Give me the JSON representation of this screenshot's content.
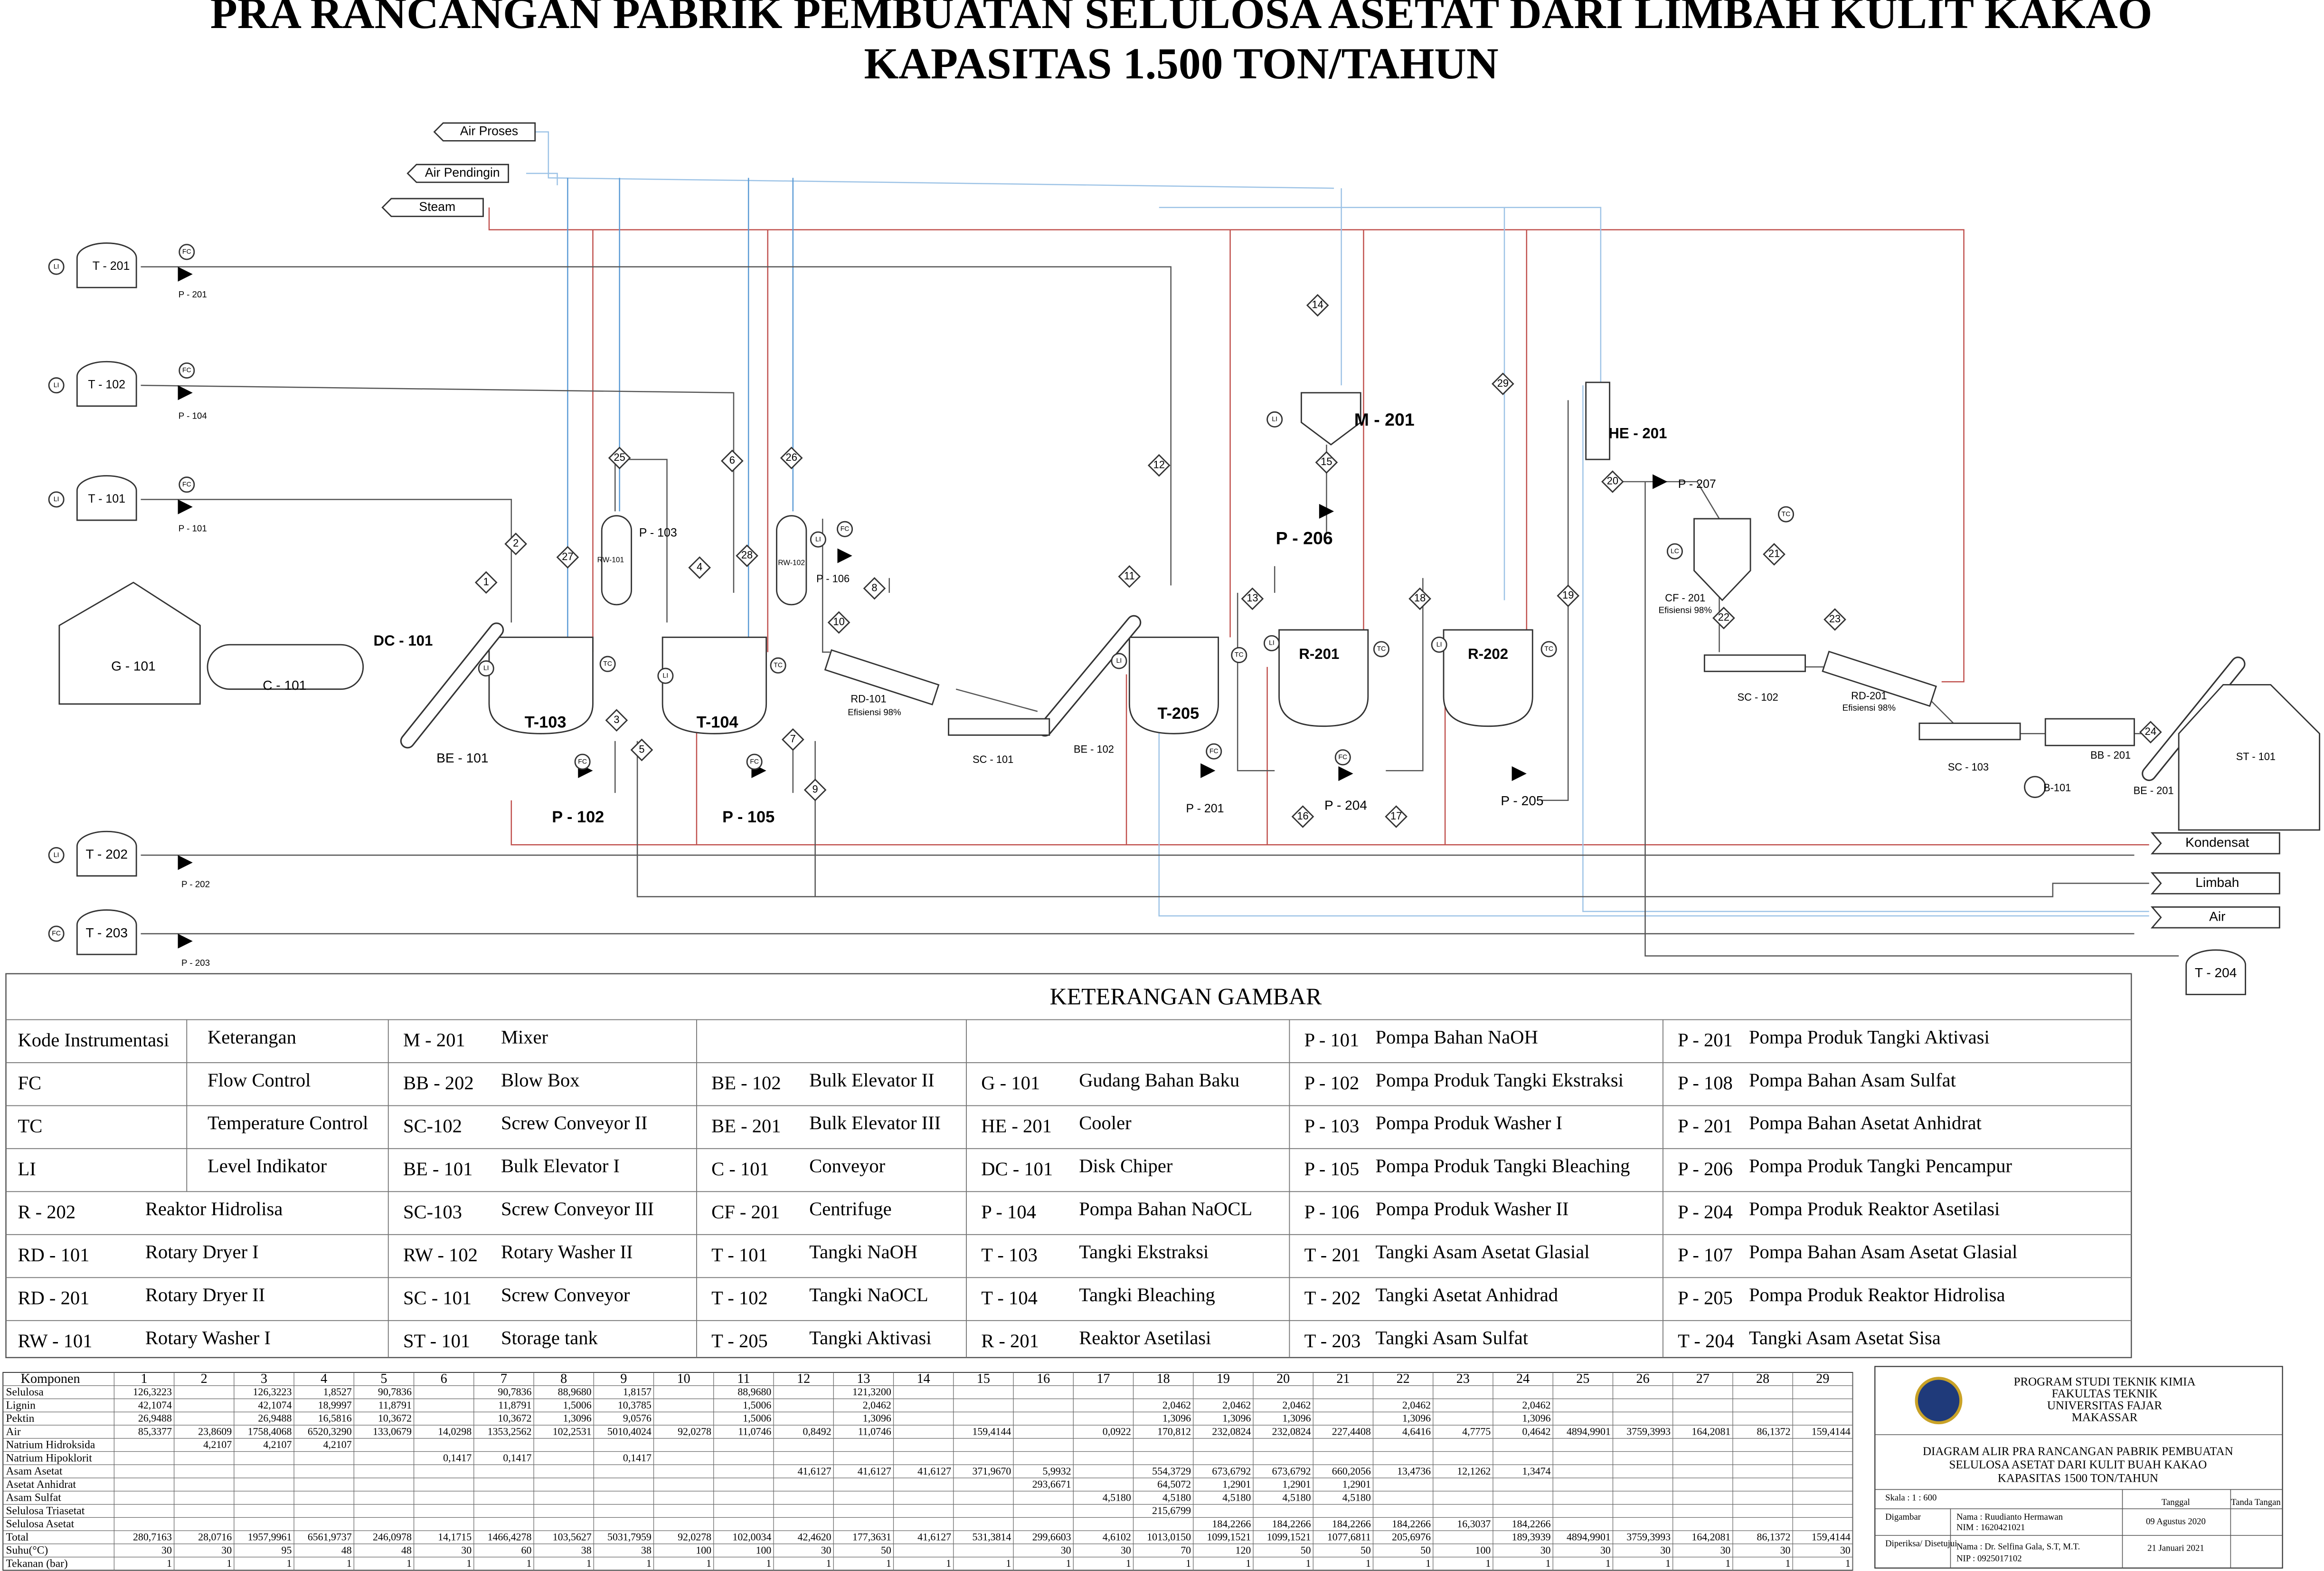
{
  "header": {
    "title_lines": [
      "PRA RANCANGAN PABRIK PEMBUATAN SELULOSA ASETAT  DARI LIMBAH KULIT KAKAO",
      "KAPASITAS 1.500 TON/TAHUN"
    ]
  },
  "diagram": {
    "utilities_in": [
      "Air Proses",
      "Air Pendingin",
      "Steam"
    ],
    "utilities_out": [
      "Kondensat",
      "Limbah",
      "Air"
    ],
    "equipment": [
      "T - 201",
      "P - 201",
      "T - 102",
      "P - 104",
      "T - 101",
      "P - 101",
      "G - 101",
      "C - 101",
      "DC - 101",
      "BE - 101",
      "T-103",
      "P - 102",
      "RW-101",
      "P - 103",
      "T-104",
      "P - 105",
      "RW-102",
      "P - 106",
      "RD-101",
      "Efisiensi 98%",
      "SC - 101",
      "BE - 102",
      "T-205",
      "P - 201",
      "M - 201",
      "P - 206",
      "R-201",
      "P - 204",
      "R-202",
      "P - 205",
      "HE - 201",
      "P - 207",
      "CF - 201",
      "Efisiensi 98%",
      "SC - 102",
      "RD-201",
      "Efisiensi 98%",
      "SC - 103",
      "BB - 201",
      "B-101",
      "BE - 201",
      "ST - 101",
      "T - 202",
      "P - 202",
      "T - 203",
      "P - 203",
      "T - 204"
    ],
    "stream_numbers": [
      "1",
      "2",
      "3",
      "4",
      "5",
      "6",
      "7",
      "8",
      "9",
      "10",
      "11",
      "12",
      "13",
      "14",
      "15",
      "16",
      "17",
      "18",
      "19",
      "20",
      "21",
      "22",
      "23",
      "24",
      "25",
      "26",
      "27",
      "28",
      "29"
    ],
    "instrument_tags": [
      "LI",
      "FC",
      "LI",
      "FC",
      "LI",
      "FC",
      "LI",
      "TC",
      "FC",
      "LI",
      "TC",
      "FC",
      "LI",
      "TC",
      "FC",
      "LI",
      "TC",
      "LI",
      "TC",
      "LI",
      "FC",
      "LC",
      "TC",
      "LI",
      "FC",
      "LI",
      "FC"
    ]
  },
  "legend": {
    "title": "KETERANGAN GAMBAR",
    "rows": [
      [
        {
          "code": "Kode Instrumentasi",
          "desc": "Keterangan"
        },
        {
          "code": "M - 201",
          "desc": "Mixer"
        },
        null,
        null,
        {
          "code": "P - 101",
          "desc": "Pompa Bahan NaOH"
        },
        {
          "code": "P - 201",
          "desc": "Pompa Produk Tangki Aktivasi"
        }
      ],
      [
        {
          "code": "FC",
          "desc": "Flow Control"
        },
        {
          "code": "BB - 202",
          "desc": "Blow Box"
        },
        {
          "code": "BE - 102",
          "desc": "Bulk Elevator II"
        },
        {
          "code": "G - 101",
          "desc": "Gudang Bahan Baku"
        },
        {
          "code": "P - 102",
          "desc": "Pompa Produk Tangki Ekstraksi"
        },
        {
          "code": "P - 108",
          "desc": "Pompa Bahan Asam Sulfat"
        }
      ],
      [
        {
          "code": "TC",
          "desc": "Temperature Control"
        },
        {
          "code": "SC-102",
          "desc": "Screw Conveyor II"
        },
        {
          "code": "BE - 201",
          "desc": "Bulk Elevator III"
        },
        {
          "code": "HE - 201",
          "desc": "Cooler"
        },
        {
          "code": "P - 103",
          "desc": "Pompa Produk Washer I"
        },
        {
          "code": "P - 201",
          "desc": "Pompa Bahan Asetat Anhidrat"
        }
      ],
      [
        {
          "code": "LI",
          "desc": "Level Indikator"
        },
        {
          "code": "BE - 101",
          "desc": "Bulk Elevator I"
        },
        {
          "code": "C - 101",
          "desc": "Conveyor"
        },
        {
          "code": "DC - 101",
          "desc": "Disk Chiper"
        },
        {
          "code": "P - 105",
          "desc": "Pompa Produk Tangki Bleaching"
        },
        {
          "code": "P - 206",
          "desc": "Pompa Produk Tangki Pencampur"
        }
      ],
      [
        {
          "code": "R - 202",
          "desc": "Reaktor Hidrolisa"
        },
        {
          "code": "SC-103",
          "desc": "Screw Conveyor III"
        },
        {
          "code": "CF - 201",
          "desc": "Centrifuge"
        },
        {
          "code": "P - 104",
          "desc": "Pompa Bahan NaOCL"
        },
        {
          "code": "P - 106",
          "desc": "Pompa Produk Washer II"
        },
        {
          "code": "P - 204",
          "desc": "Pompa Produk Reaktor Asetilasi"
        }
      ],
      [
        {
          "code": "RD - 101",
          "desc": "Rotary Dryer I"
        },
        {
          "code": "RW - 102",
          "desc": "Rotary Washer II"
        },
        {
          "code": "T - 101",
          "desc": "Tangki NaOH"
        },
        {
          "code": "T - 103",
          "desc": "Tangki Ekstraksi"
        },
        {
          "code": "T - 201",
          "desc": "Tangki Asam Asetat Glasial"
        },
        {
          "code": "P - 107",
          "desc": "Pompa Bahan Asam Asetat Glasial"
        }
      ],
      [
        {
          "code": "RD - 201",
          "desc": "Rotary Dryer II"
        },
        {
          "code": "SC - 101",
          "desc": "Screw Conveyor"
        },
        {
          "code": "T - 102",
          "desc": "Tangki NaOCL"
        },
        {
          "code": "T - 104",
          "desc": "Tangki Bleaching"
        },
        {
          "code": "T - 202",
          "desc": "Tangki Asetat Anhidrad"
        },
        {
          "code": "P - 205",
          "desc": "Pompa Produk Reaktor Hidrolisa"
        }
      ],
      [
        {
          "code": "RW - 101",
          "desc": "Rotary Washer I"
        },
        {
          "code": "ST - 101",
          "desc": "Storage tank"
        },
        {
          "code": "T - 205",
          "desc": "Tangki Aktivasi"
        },
        {
          "code": "R - 201",
          "desc": "Reaktor Asetilasi"
        },
        {
          "code": "T - 203",
          "desc": "Tangki Asam Sulfat"
        },
        {
          "code": "T - 204",
          "desc": "Tangki Asam Asetat Sisa"
        }
      ]
    ]
  },
  "stream_table": {
    "header": [
      "Komponen",
      "1",
      "2",
      "3",
      "4",
      "5",
      "6",
      "7",
      "8",
      "9",
      "10",
      "11",
      "12",
      "13",
      "14",
      "15",
      "16",
      "17",
      "18",
      "19",
      "20",
      "21",
      "22",
      "23",
      "24",
      "25",
      "26",
      "27",
      "28",
      "29"
    ],
    "rows": [
      {
        "name": "Selulosa",
        "values": [
          "126,3223",
          null,
          "126,3223",
          "1,8527",
          "90,7836",
          null,
          "90,7836",
          "88,9680",
          "1,8157",
          null,
          "88,9680",
          null,
          "121,3200",
          null,
          null,
          null,
          null,
          null,
          null,
          null,
          null,
          null,
          null,
          null,
          null,
          null,
          null,
          null,
          null
        ]
      },
      {
        "name": "Lignin",
        "values": [
          "42,1074",
          null,
          "42,1074",
          "18,9997",
          "11,8791",
          null,
          "11,8791",
          "1,5006",
          "10,3785",
          null,
          "1,5006",
          null,
          "2,0462",
          null,
          null,
          null,
          null,
          "2,0462",
          "2,0462",
          "2,0462",
          null,
          "2,0462",
          null,
          "2,0462",
          null,
          null,
          null,
          null,
          null
        ]
      },
      {
        "name": "Pektin",
        "values": [
          "26,9488",
          null,
          "26,9488",
          "16,5816",
          "10,3672",
          null,
          "10,3672",
          "1,3096",
          "9,0576",
          null,
          "1,5006",
          null,
          "1,3096",
          null,
          null,
          null,
          null,
          "1,3096",
          "1,3096",
          "1,3096",
          null,
          "1,3096",
          null,
          "1,3096",
          null,
          null,
          null,
          null,
          null
        ]
      },
      {
        "name": "Air",
        "values": [
          "85,3377",
          "23,8609",
          "1758,4068",
          "6520,3290",
          "133,0679",
          "14,0298",
          "1353,2562",
          "102,2531",
          "5010,4024",
          "92,0278",
          "11,0746",
          "0,8492",
          "11,0746",
          null,
          "159,4144",
          null,
          "0,0922",
          "170,812",
          "232,0824",
          "232,0824",
          "227,4408",
          "4,6416",
          "4,7775",
          "0,4642",
          "4894,9901",
          "3759,3993",
          "164,2081",
          "86,1372",
          "159,4144"
        ]
      },
      {
        "name": "Natrium Hidroksida",
        "values": [
          null,
          "4,2107",
          "4,2107",
          "4,2107",
          null,
          null,
          null,
          null,
          null,
          null,
          null,
          null,
          null,
          null,
          null,
          null,
          null,
          null,
          null,
          null,
          null,
          null,
          null,
          null,
          null,
          null,
          null,
          null,
          null
        ]
      },
      {
        "name": "Natrium Hipoklorit",
        "values": [
          null,
          null,
          null,
          null,
          null,
          "0,1417",
          "0,1417",
          null,
          "0,1417",
          null,
          null,
          null,
          null,
          null,
          null,
          null,
          null,
          null,
          null,
          null,
          null,
          null,
          null,
          null,
          null,
          null,
          null,
          null,
          null
        ]
      },
      {
        "name": "Asam Asetat",
        "values": [
          null,
          null,
          null,
          null,
          null,
          null,
          null,
          null,
          null,
          null,
          null,
          "41,6127",
          "41,6127",
          "41,6127",
          "371,9670",
          "5,9932",
          null,
          "554,3729",
          "673,6792",
          "673,6792",
          "660,2056",
          "13,4736",
          "12,1262",
          "1,3474",
          null,
          null,
          null,
          null,
          null
        ]
      },
      {
        "name": "Asetat Anhidrat",
        "values": [
          null,
          null,
          null,
          null,
          null,
          null,
          null,
          null,
          null,
          null,
          null,
          null,
          null,
          null,
          null,
          "293,6671",
          null,
          "64,5072",
          "1,2901",
          "1,2901",
          "1,2901",
          null,
          null,
          null,
          null,
          null,
          null,
          null,
          null
        ]
      },
      {
        "name": "Asam Sulfat",
        "values": [
          null,
          null,
          null,
          null,
          null,
          null,
          null,
          null,
          null,
          null,
          null,
          null,
          null,
          null,
          null,
          null,
          "4,5180",
          "4,5180",
          "4,5180",
          "4,5180",
          "4,5180",
          null,
          null,
          null,
          null,
          null,
          null,
          null,
          null
        ]
      },
      {
        "name": "Selulosa Triasetat",
        "values": [
          null,
          null,
          null,
          null,
          null,
          null,
          null,
          null,
          null,
          null,
          null,
          null,
          null,
          null,
          null,
          null,
          null,
          "215,6799",
          null,
          null,
          null,
          null,
          null,
          null,
          null,
          null,
          null,
          null,
          null
        ]
      },
      {
        "name": "Selulosa Asetat",
        "values": [
          null,
          null,
          null,
          null,
          null,
          null,
          null,
          null,
          null,
          null,
          null,
          null,
          null,
          null,
          null,
          null,
          null,
          null,
          "184,2266",
          "184,2266",
          "184,2266",
          "184,2266",
          "16,3037",
          "184,2266",
          null,
          null,
          null,
          null,
          null
        ]
      },
      {
        "name": "Total",
        "values": [
          "280,7163",
          "28,0716",
          "1957,9961",
          "6561,9737",
          "246,0978",
          "14,1715",
          "1466,4278",
          "103,5627",
          "5031,7959",
          "92,0278",
          "102,0034",
          "42,4620",
          "177,3631",
          "41,6127",
          "531,3814",
          "299,6603",
          "4,6102",
          "1013,0150",
          "1099,1521",
          "1099,1521",
          "1077,6811",
          "205,6976",
          null,
          "189,3939",
          "4894,9901",
          "3759,3993",
          "164,2081",
          "86,1372",
          "159,4144"
        ]
      },
      {
        "name": "Suhu(°C)",
        "values": [
          "30",
          "30",
          "95",
          "48",
          "48",
          "30",
          "60",
          "38",
          "38",
          "100",
          "100",
          "30",
          "50",
          null,
          null,
          "30",
          "30",
          "70",
          "120",
          "50",
          "50",
          "50",
          "100",
          "30",
          "30",
          "30",
          "30",
          "30",
          "30"
        ]
      },
      {
        "name": "Tekanan (bar)",
        "values": [
          "1",
          "1",
          "1",
          "1",
          "1",
          "1",
          "1",
          "1",
          "1",
          "1",
          "1",
          "1",
          "1",
          "1",
          "1",
          "1",
          "1",
          "1",
          "1",
          "1",
          "1",
          "1",
          "1",
          "1",
          "1",
          "1",
          "1",
          "1",
          "1"
        ]
      }
    ]
  },
  "title_block": {
    "institution": [
      "PROGRAM STUDI TEKNIK KIMIA",
      "FAKULTAS TEKNIK",
      "UNIVERSITAS FAJAR",
      "MAKASSAR"
    ],
    "drawing_title": [
      "DIAGRAM ALIR PRA RANCANGAN PABRIK PEMBUATAN",
      "SELULOSA ASETAT DARI KULIT BUAH KAKAO",
      "KAPASITAS 1500 TON/TAHUN"
    ],
    "scale": "Skala : 1 : 600",
    "date_header": "Tanggal",
    "sign_header": "Tanda Tangan",
    "drawn_by": "Digambar",
    "drawn_name": "Nama   : Ruudianto Hermawan",
    "drawn_id": "NIM    : 1620421021",
    "drawn_date": "09 Agustus 2020",
    "checked_by": "Diperiksa/ Disetujui",
    "checked_name": "Nama   :  Dr. Selfina Gala, S.T, M.T.",
    "checked_id": "NIP     :  0925017102",
    "checked_date": "21 Januari 2021"
  }
}
